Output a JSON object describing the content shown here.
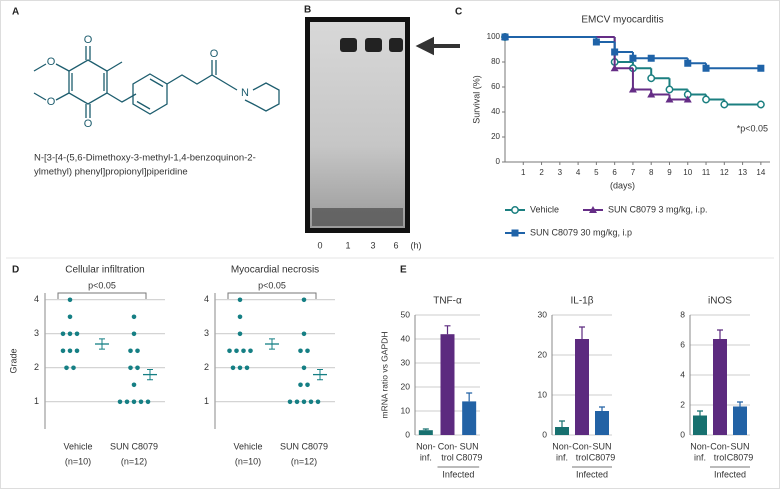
{
  "panels": [
    "A",
    "B",
    "C",
    "D",
    "E"
  ],
  "structure": {
    "atoms": [
      "O",
      "O",
      "O",
      "O",
      "O",
      "N"
    ],
    "name": [
      "N-[3-[4-(5,6-Dimethoxy-3-methyl-1,4-benzoquinon-2-",
      "ylmethyl) phenyl]propionyl]piperidine"
    ]
  },
  "gel": {
    "lanes": [
      "0",
      "1",
      "3",
      "6"
    ],
    "unit": "(h)"
  },
  "chart_data": [
    {
      "type": "step",
      "title": "EMCV myocarditis",
      "xlabel": "(days)",
      "ylabel": "Survival (%)",
      "xlim": [
        0,
        14.5
      ],
      "xticks": [
        1,
        2,
        3,
        4,
        5,
        6,
        7,
        8,
        9,
        10,
        11,
        12,
        13,
        14
      ],
      "ylim": [
        0,
        100
      ],
      "yticks": [
        0,
        20,
        40,
        60,
        80,
        100
      ],
      "annotation": "*p<0.05",
      "series": [
        {
          "name": "Vehicle",
          "color": "#1b7f80",
          "marker": "circle",
          "x": [
            0,
            6,
            7,
            8,
            9,
            10,
            11,
            12,
            14
          ],
          "values": [
            100,
            80,
            75,
            67,
            58,
            54,
            50,
            46,
            46
          ]
        },
        {
          "name": "SUN C8079 3 mg/kg, i.p.",
          "color": "#652d86",
          "marker": "triangle",
          "x": [
            0,
            6,
            7,
            8,
            9,
            10
          ],
          "values": [
            100,
            75,
            58,
            54,
            50,
            50
          ]
        },
        {
          "name": "SUN C8079 30 mg/kg, i.p",
          "color": "#1f63a8",
          "marker": "square",
          "x": [
            0,
            5,
            6,
            7,
            8,
            10,
            11,
            14
          ],
          "values": [
            100,
            96,
            88,
            83,
            83,
            79,
            75,
            75
          ]
        }
      ]
    },
    {
      "type": "dot",
      "title": "Cellular infiltration",
      "ylabel": "Grade",
      "annotation": "p<0.05",
      "color": "#157f84",
      "categories": [
        "Vehicle",
        "SUN C8079"
      ],
      "sublabels": [
        "(n=10)",
        "(n=12)"
      ],
      "ylim": [
        0.2,
        4.2
      ],
      "yticks": [
        1,
        2,
        3,
        4
      ],
      "groups": [
        {
          "values": [
            4,
            3.5,
            3,
            3,
            3,
            2.5,
            2.5,
            2.5,
            2,
            2
          ],
          "mean": 2.7,
          "sem": 0.15
        },
        {
          "values": [
            3.5,
            3,
            2.5,
            2.5,
            2,
            2,
            1.5,
            1,
            1,
            1,
            1,
            1
          ],
          "mean": 1.8,
          "sem": 0.15
        }
      ]
    },
    {
      "type": "dot",
      "title": "Myocardial necrosis",
      "annotation": "p<0.05",
      "color": "#157f84",
      "categories": [
        "Vehicle",
        "SUN C8079"
      ],
      "sublabels": [
        "(n=10)",
        "(n=12)"
      ],
      "ylim": [
        0.2,
        4.2
      ],
      "yticks": [
        1,
        2,
        3,
        4
      ],
      "groups": [
        {
          "values": [
            4,
            3.5,
            3,
            2.5,
            2.5,
            2.5,
            2.5,
            2,
            2,
            2
          ],
          "mean": 2.7,
          "sem": 0.15
        },
        {
          "values": [
            4,
            3,
            2.5,
            2.5,
            2,
            1.5,
            1.5,
            1,
            1,
            1,
            1,
            1
          ],
          "mean": 1.8,
          "sem": 0.15
        }
      ]
    },
    {
      "type": "bar",
      "title": "TNF-α",
      "ylabel": "mRNA ratio vs GAPDH",
      "group_label": "Infected",
      "categories": [
        [
          "Non-",
          "inf."
        ],
        [
          "Con-",
          "trol"
        ],
        [
          "SUN",
          "C8079"
        ]
      ],
      "colors": [
        "#17706f",
        "#5c2a7f",
        "#2262a5"
      ],
      "values": [
        2,
        42,
        14
      ],
      "errors": [
        0.5,
        3.5,
        3.5
      ],
      "ylim": [
        0,
        50
      ],
      "yticks": [
        0,
        10,
        20,
        30,
        40,
        50
      ]
    },
    {
      "type": "bar",
      "title": "IL-1β",
      "group_label": "Infected",
      "categories": [
        [
          "Non-",
          "inf."
        ],
        [
          "Con-",
          "trol"
        ],
        [
          "SUN",
          "C8079"
        ]
      ],
      "colors": [
        "#17706f",
        "#5c2a7f",
        "#2262a5"
      ],
      "values": [
        2,
        24,
        6
      ],
      "errors": [
        1.5,
        3,
        1
      ],
      "ylim": [
        0,
        30
      ],
      "yticks": [
        0,
        10,
        20,
        30
      ]
    },
    {
      "type": "bar",
      "title": "iNOS",
      "group_label": "Infected",
      "categories": [
        [
          "Non-",
          "inf."
        ],
        [
          "Con-",
          "trol"
        ],
        [
          "SUN",
          "C8079"
        ]
      ],
      "colors": [
        "#17706f",
        "#5c2a7f",
        "#2262a5"
      ],
      "values": [
        1.3,
        6.4,
        1.9
      ],
      "errors": [
        0.3,
        0.6,
        0.3
      ],
      "ylim": [
        0,
        8
      ],
      "yticks": [
        0,
        2,
        4,
        6,
        8
      ]
    }
  ]
}
